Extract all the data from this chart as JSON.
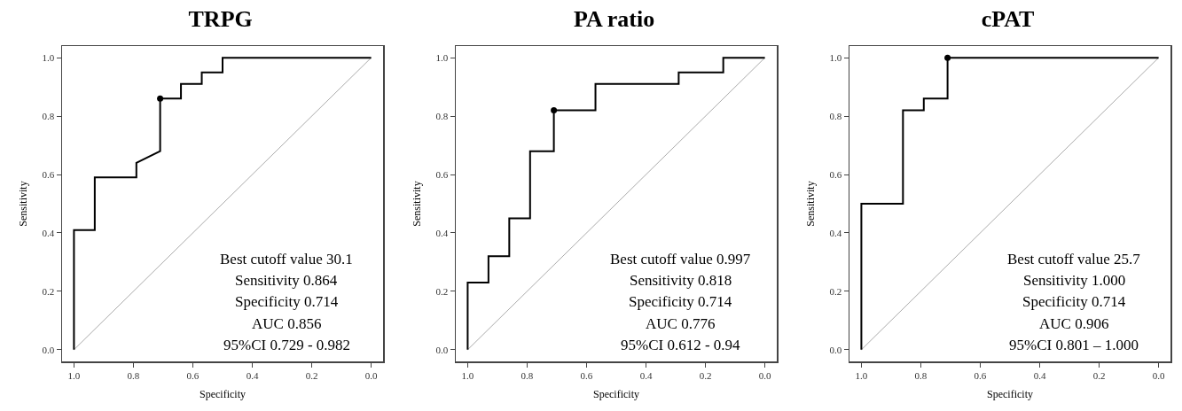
{
  "chart_data": [
    {
      "type": "line",
      "title": "TRPG",
      "xlabel": "Specificity",
      "ylabel": "Sensitivity",
      "xlim": [
        1.04,
        -0.04
      ],
      "ylim": [
        -0.04,
        1.04
      ],
      "xticks": [
        {
          "value": 1,
          "label": "1.0"
        },
        {
          "value": 0.8,
          "label": "0.8"
        },
        {
          "value": 0.6,
          "label": "0.6"
        },
        {
          "value": 0.4,
          "label": "0.4"
        },
        {
          "value": 0.2,
          "label": "0.2"
        },
        {
          "value": 0,
          "label": "0.0"
        }
      ],
      "yticks": [
        {
          "value": 0,
          "label": "0.0"
        },
        {
          "value": 0.2,
          "label": "0.2"
        },
        {
          "value": 0.4,
          "label": "0.4"
        },
        {
          "value": 0.6,
          "label": "0.6"
        },
        {
          "value": 0.8,
          "label": "0.8"
        },
        {
          "value": 1,
          "label": "1.0"
        }
      ],
      "grid": false,
      "series": [
        {
          "color": "#aaaaaa",
          "x": [
            1,
            0
          ],
          "values": [
            0,
            1
          ]
        },
        {
          "color": "#000000",
          "marker": "none",
          "line_style": "solid",
          "x": [
            1,
            1,
            0.93,
            0.93,
            0.79,
            0.79,
            0.71,
            0.71,
            0.64,
            0.64,
            0.57,
            0.57,
            0.5,
            0.5,
            0
          ],
          "values": [
            0,
            0.41,
            0.41,
            0.59,
            0.59,
            0.64,
            0.68,
            0.86,
            0.86,
            0.91,
            0.91,
            0.95,
            0.95,
            1,
            1
          ]
        },
        {
          "type": "scatter",
          "color": "#000000",
          "marker": "circle",
          "x": [
            0.71
          ],
          "values": [
            0.86
          ]
        }
      ],
      "annotations": [
        "Best cutoff value 30.1",
        "Sensitivity 0.864",
        "Specificity 0.714",
        "AUC 0.856",
        "95%CI 0.729 - 0.982"
      ]
    },
    {
      "type": "line",
      "title": "PA ratio",
      "xlabel": "Specificity",
      "ylabel": "Sensitivity",
      "xlim": [
        1.04,
        -0.04
      ],
      "ylim": [
        -0.04,
        1.04
      ],
      "xticks": [
        {
          "value": 1,
          "label": "1.0"
        },
        {
          "value": 0.8,
          "label": "0.8"
        },
        {
          "value": 0.6,
          "label": "0.6"
        },
        {
          "value": 0.4,
          "label": "0.4"
        },
        {
          "value": 0.2,
          "label": "0.2"
        },
        {
          "value": 0,
          "label": "0.0"
        }
      ],
      "yticks": [
        {
          "value": 0,
          "label": "0.0"
        },
        {
          "value": 0.2,
          "label": "0.2"
        },
        {
          "value": 0.4,
          "label": "0.4"
        },
        {
          "value": 0.6,
          "label": "0.6"
        },
        {
          "value": 0.8,
          "label": "0.8"
        },
        {
          "value": 1,
          "label": "1.0"
        }
      ],
      "grid": false,
      "series": [
        {
          "color": "#aaaaaa",
          "x": [
            1,
            0
          ],
          "values": [
            0,
            1
          ]
        },
        {
          "color": "#000000",
          "marker": "none",
          "line_style": "solid",
          "x": [
            1,
            1,
            0.93,
            0.93,
            0.86,
            0.86,
            0.79,
            0.79,
            0.71,
            0.71,
            0.57,
            0.57,
            0.29,
            0.29,
            0.14,
            0.14,
            0
          ],
          "values": [
            0,
            0.23,
            0.23,
            0.32,
            0.32,
            0.45,
            0.45,
            0.68,
            0.68,
            0.82,
            0.82,
            0.91,
            0.91,
            0.95,
            0.95,
            1,
            1
          ]
        },
        {
          "type": "scatter",
          "color": "#000000",
          "marker": "circle",
          "x": [
            0.71
          ],
          "values": [
            0.82
          ]
        }
      ],
      "annotations": [
        "Best cutoff value 0.997",
        "Sensitivity 0.818",
        "Specificity 0.714",
        "AUC 0.776",
        "95%CI 0.612 - 0.94"
      ]
    },
    {
      "type": "line",
      "title": "cPAT",
      "xlabel": "Specificity",
      "ylabel": "Sensitivity",
      "xlim": [
        1.04,
        -0.04
      ],
      "ylim": [
        -0.04,
        1.04
      ],
      "xticks": [
        {
          "value": 1,
          "label": "1.0"
        },
        {
          "value": 0.8,
          "label": "0.8"
        },
        {
          "value": 0.6,
          "label": "0.6"
        },
        {
          "value": 0.4,
          "label": "0.4"
        },
        {
          "value": 0.2,
          "label": "0.2"
        },
        {
          "value": 0,
          "label": "0.0"
        }
      ],
      "yticks": [
        {
          "value": 0,
          "label": "0.0"
        },
        {
          "value": 0.2,
          "label": "0.2"
        },
        {
          "value": 0.4,
          "label": "0.4"
        },
        {
          "value": 0.6,
          "label": "0.6"
        },
        {
          "value": 0.8,
          "label": "0.8"
        },
        {
          "value": 1,
          "label": "1.0"
        }
      ],
      "grid": false,
      "series": [
        {
          "color": "#aaaaaa",
          "x": [
            1,
            0
          ],
          "values": [
            0,
            1
          ]
        },
        {
          "color": "#000000",
          "marker": "none",
          "line_style": "solid",
          "x": [
            1,
            1,
            0.86,
            0.86,
            0.79,
            0.79,
            0.71,
            0.71,
            0
          ],
          "values": [
            0,
            0.5,
            0.5,
            0.82,
            0.82,
            0.86,
            0.86,
            1,
            1
          ]
        },
        {
          "type": "scatter",
          "color": "#000000",
          "marker": "circle",
          "x": [
            0.71
          ],
          "values": [
            1
          ]
        }
      ],
      "annotations": [
        "Best cutoff value 25.7",
        "Sensitivity 1.000",
        "Specificity 0.714",
        "AUC 0.906",
        "95%CI 0.801 – 1.000"
      ]
    }
  ]
}
